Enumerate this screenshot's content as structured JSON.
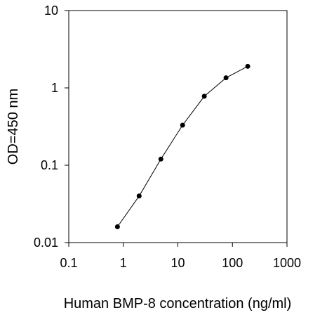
{
  "chart_data": {
    "type": "line",
    "title": "",
    "xlabel": "Human  BMP-8 concentration (ng/ml)",
    "ylabel": "OD=450 nm",
    "x_scale": "log",
    "y_scale": "log",
    "xlim": [
      0.1,
      1000
    ],
    "ylim": [
      0.01,
      10
    ],
    "x_ticks": [
      "0.1",
      "1",
      "10",
      "100",
      "1000"
    ],
    "y_ticks": [
      "0.01",
      "0.1",
      "1",
      "10"
    ],
    "grid": false,
    "legend": "none",
    "marker": "circle",
    "colors": {
      "line": "#000000",
      "marker": "#000000",
      "background": "#ffffff"
    },
    "series": [
      {
        "x": [
          0.78,
          1.95,
          4.88,
          12.2,
          30.5,
          76.3,
          190.7
        ],
        "y": [
          0.016,
          0.04,
          0.12,
          0.33,
          0.78,
          1.35,
          1.9
        ]
      }
    ]
  }
}
